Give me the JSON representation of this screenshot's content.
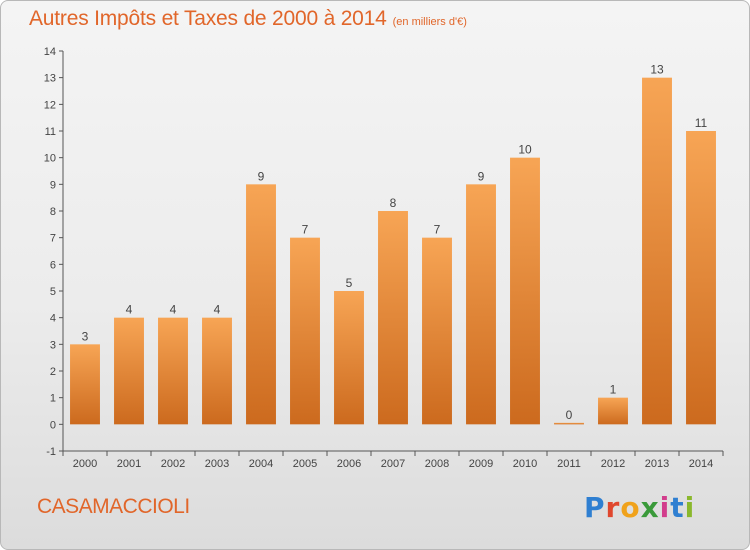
{
  "header": {
    "title": "Autres Impôts et Taxes de 2000 à 2014",
    "unit": "(en milliers d'€)"
  },
  "footer": {
    "commune": "CASAMACCIOLI",
    "logo_letters": [
      "P",
      "r",
      "o",
      "x",
      "i",
      "t",
      "i"
    ]
  },
  "colors": {
    "title": "#e1662a",
    "bar_light": "#f7a555",
    "bar_dark": "#cc6a1e",
    "axis": "#555555",
    "label": "#444444"
  },
  "chart_data": {
    "type": "bar",
    "categories": [
      "2000",
      "2001",
      "2002",
      "2003",
      "2004",
      "2005",
      "2006",
      "2007",
      "2008",
      "2009",
      "2010",
      "2011",
      "2012",
      "2013",
      "2014"
    ],
    "values": [
      3,
      4,
      4,
      4,
      9,
      7,
      5,
      8,
      7,
      9,
      10,
      0,
      1,
      13,
      11
    ],
    "data_labels": [
      "3",
      "4",
      "4",
      "4",
      "9",
      "7",
      "5",
      "8",
      "7",
      "9",
      "10",
      "0",
      "1",
      "13",
      "11"
    ],
    "y_ticks": [
      -1,
      0,
      1,
      2,
      3,
      4,
      5,
      6,
      7,
      8,
      9,
      10,
      11,
      12,
      13,
      14
    ],
    "ylim": [
      -1,
      14
    ],
    "title": "Autres Impôts et Taxes de 2000 à 2014",
    "xlabel": "",
    "ylabel": "",
    "grid": false,
    "legend": "none"
  }
}
